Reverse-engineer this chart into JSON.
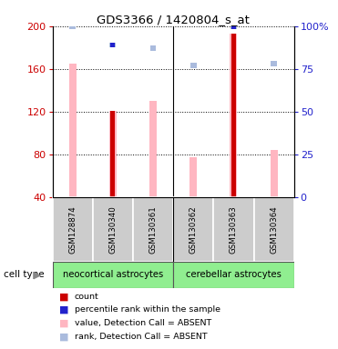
{
  "title": "GDS3366 / 1420804_s_at",
  "samples": [
    "GSM128874",
    "GSM130340",
    "GSM130361",
    "GSM130362",
    "GSM130363",
    "GSM130364"
  ],
  "value_absent_data": [
    165,
    121,
    130,
    77,
    193,
    84
  ],
  "rank_absent_data": [
    100,
    89,
    87,
    77,
    100,
    78
  ],
  "count_data": [
    0,
    121,
    0,
    0,
    193,
    0
  ],
  "percentile_data": [
    0,
    89,
    0,
    0,
    100,
    0
  ],
  "has_count": [
    false,
    true,
    false,
    false,
    true,
    false
  ],
  "has_percentile": [
    false,
    true,
    false,
    false,
    true,
    false
  ],
  "ylim_left": [
    40,
    200
  ],
  "yticks_left": [
    40,
    80,
    120,
    160,
    200
  ],
  "yticks_right": [
    0,
    25,
    50,
    75,
    100
  ],
  "colors": {
    "count": "#CC0000",
    "percentile": "#2222CC",
    "value_absent": "#FFB6C1",
    "rank_absent": "#AABBDD",
    "neocortical": "#90EE90",
    "cerebellar": "#90EE90",
    "left_axis": "#CC0000",
    "right_axis": "#2222CC"
  },
  "legend_labels": [
    "count",
    "percentile rank within the sample",
    "value, Detection Call = ABSENT",
    "rank, Detection Call = ABSENT"
  ],
  "legend_colors": [
    "#CC0000",
    "#2222CC",
    "#FFB6C1",
    "#AABBDD"
  ]
}
